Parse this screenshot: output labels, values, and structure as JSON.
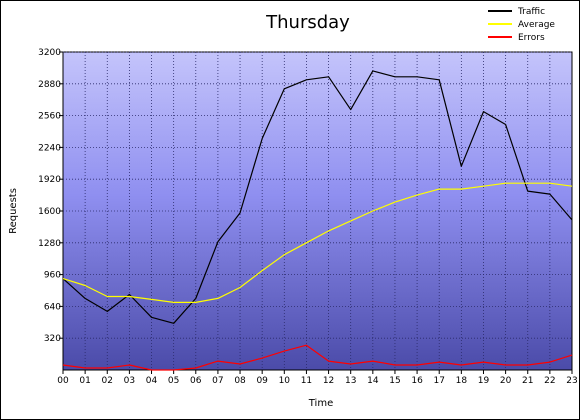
{
  "chart_data": {
    "type": "line",
    "title": "Thursday",
    "xlabel": "Time",
    "ylabel": "Requests",
    "categories": [
      "00",
      "01",
      "02",
      "03",
      "04",
      "05",
      "06",
      "07",
      "08",
      "09",
      "10",
      "11",
      "12",
      "13",
      "14",
      "15",
      "16",
      "17",
      "18",
      "19",
      "20",
      "21",
      "22",
      "23"
    ],
    "ylim": [
      0,
      3200
    ],
    "yticks": [
      320,
      640,
      960,
      1280,
      1600,
      1920,
      2240,
      2560,
      2880,
      3200
    ],
    "legend_position": "top-right",
    "grid": true,
    "series": [
      {
        "name": "Traffic",
        "color": "#000000",
        "values": [
          920,
          720,
          590,
          760,
          530,
          470,
          720,
          1290,
          1580,
          2330,
          2830,
          2920,
          2950,
          2620,
          3010,
          2950,
          2950,
          2920,
          2050,
          2600,
          2470,
          1800,
          1770,
          1510
        ]
      },
      {
        "name": "Average",
        "color": "#ffff00",
        "values": [
          920,
          850,
          740,
          740,
          710,
          680,
          680,
          720,
          830,
          1000,
          1160,
          1280,
          1400,
          1500,
          1600,
          1690,
          1760,
          1820,
          1820,
          1850,
          1880,
          1880,
          1880,
          1850
        ]
      },
      {
        "name": "Errors",
        "color": "#ff0000",
        "values": [
          50,
          20,
          20,
          50,
          0,
          0,
          20,
          90,
          60,
          120,
          190,
          250,
          90,
          60,
          90,
          50,
          50,
          80,
          50,
          80,
          50,
          50,
          80,
          150
        ]
      }
    ]
  }
}
